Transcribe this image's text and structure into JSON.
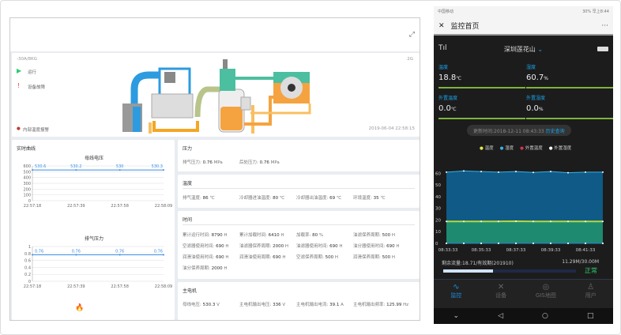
{
  "desktop": {
    "expand_icon": "expand-icon",
    "device": {
      "name": "-30A/8KG",
      "status_running": "运行",
      "status_fault": "设备故障",
      "legend_note": "内部温度报警",
      "signal": "2G",
      "timestamp": "2019-06-04 22:58:15"
    },
    "realtime": {
      "title": "实时曲线",
      "charts": [
        {
          "type": "line",
          "title": "母线电压",
          "categories": [
            "22:57:18",
            "22:57:39",
            "22:57:58",
            "22:58:09"
          ],
          "values": [
            530.6,
            530.2,
            530,
            530.3
          ],
          "yticks": [
            "0",
            "100",
            "200",
            "300",
            "400",
            "500",
            "600"
          ],
          "ylim": [
            0,
            600
          ],
          "color": "#3a8ee6"
        },
        {
          "type": "line",
          "title": "排气压力",
          "categories": [
            "22:57:18",
            "22:57:39",
            "22:57:58",
            "22:58:09"
          ],
          "values": [
            0.76,
            0.76,
            0.76,
            0.76
          ],
          "yticks": [
            "0",
            "0.2",
            "0.4",
            "0.6",
            "0.8",
            "1"
          ],
          "ylim": [
            0,
            1
          ],
          "color": "#3a8ee6"
        }
      ]
    },
    "pressure": {
      "title": "压力",
      "items": [
        {
          "k": "排气压力:",
          "v": "0.76",
          "u": "MPa"
        },
        {
          "k": "后处压力:",
          "v": "0.76",
          "u": "MPa"
        }
      ]
    },
    "temperature": {
      "title": "温度",
      "items": [
        {
          "k": "排气温度:",
          "v": "86",
          "u": "℃"
        },
        {
          "k": "冷却器进油温度:",
          "v": "80",
          "u": "℃"
        },
        {
          "k": "冷却器出油温度:",
          "v": "69",
          "u": "℃"
        },
        {
          "k": "环境温度:",
          "v": "35",
          "u": "℃"
        }
      ]
    },
    "time": {
      "title": "时间",
      "items": [
        {
          "k": "累计运行时间:",
          "v": "8790",
          "u": "H"
        },
        {
          "k": "累计加载时间:",
          "v": "6410",
          "u": "H"
        },
        {
          "k": "加载率:",
          "v": "80",
          "u": "%"
        },
        {
          "k": "油滤保养周期:",
          "v": "500",
          "u": "H"
        },
        {
          "k": "空滤器使用时间:",
          "v": "690",
          "u": "H"
        },
        {
          "k": "油滤器保养周期:",
          "v": "2000",
          "u": "H"
        },
        {
          "k": "油滤器使用时间:",
          "v": "690",
          "u": "H"
        },
        {
          "k": "油分器使用时间:",
          "v": "690",
          "u": "H"
        },
        {
          "k": "润滑油使用时间:",
          "v": "690",
          "u": "H"
        },
        {
          "k": "润滑油使用周期:",
          "v": "690",
          "u": "H"
        },
        {
          "k": "空滤保养周期:",
          "v": "500",
          "u": "H"
        },
        {
          "k": "润滑保养周期:",
          "v": "500",
          "u": "H"
        },
        {
          "k": "油分保养周期:",
          "v": "2000",
          "u": "H"
        }
      ]
    },
    "motor": {
      "title": "主电机",
      "items": [
        {
          "k": "母线电压:",
          "v": "530.3",
          "u": "V"
        },
        {
          "k": "主电机输出电压:",
          "v": "336",
          "u": "V"
        },
        {
          "k": "主电机输出电流:",
          "v": "39.1",
          "u": "A"
        },
        {
          "k": "主电机输出频率:",
          "v": "125.99",
          "u": "Hz"
        }
      ]
    }
  },
  "phone": {
    "status_bar": {
      "carrier": "中国移动",
      "right": "30% 早上8:44"
    },
    "title": "监控首页",
    "close": "✕",
    "more": "···",
    "location": "深圳莲花山",
    "metrics": [
      {
        "k": "温度",
        "v": "18.8",
        "u": "℃"
      },
      {
        "k": "湿度",
        "v": "60.7",
        "u": "%"
      },
      {
        "k": "外置温度",
        "v": "0.0",
        "u": "℃"
      },
      {
        "k": "外置湿度",
        "v": "0.0",
        "u": "%"
      }
    ],
    "update_label": "更新时间:2018-12-11 08:43:33",
    "history_link": "历史查询",
    "legend": [
      {
        "name": "温度",
        "color": "#e8e84a"
      },
      {
        "name": "湿度",
        "color": "#3ab0e8"
      },
      {
        "name": "外置温度",
        "color": "#d8324a"
      },
      {
        "name": "外置湿度",
        "color": "#ffffff"
      }
    ],
    "chart_data": {
      "type": "area",
      "x": [
        "08:33:33",
        "08:34:33",
        "08:35:33",
        "08:36:33",
        "08:37:33",
        "08:38:33",
        "08:39:33",
        "08:40:33",
        "08:41:33",
        "08:42:33"
      ],
      "xticks": [
        "08:33:33",
        "08:35:33",
        "08:37:33",
        "08:39:33",
        "08:41:33"
      ],
      "yticks": [
        "0",
        "10",
        "20",
        "30",
        "40",
        "50",
        "60"
      ],
      "ylim": [
        0,
        65
      ],
      "series": [
        {
          "name": "湿度",
          "values": [
            61,
            62,
            61.5,
            61,
            61.5,
            60.8,
            61.5,
            60.5,
            61,
            61
          ]
        },
        {
          "name": "温度",
          "values": [
            18.8,
            18.8,
            18.8,
            18.8,
            19,
            18.8,
            18.8,
            18.8,
            18.8,
            18.8
          ]
        },
        {
          "name": "外置温度",
          "values": [
            0,
            0,
            0,
            0,
            0,
            0,
            0,
            0,
            0,
            0
          ]
        },
        {
          "name": "外置湿度",
          "values": [
            0,
            0,
            0,
            0,
            0,
            0,
            0,
            0,
            0,
            0
          ]
        }
      ]
    },
    "flow": {
      "label": "剩余流量:18.71/有效期(201910)",
      "usage": "11.29M/30.00M",
      "state": "正常",
      "fraction": 0.376
    },
    "nav": [
      {
        "label": "监控",
        "icon": "chart-icon"
      },
      {
        "label": "设备",
        "icon": "tools-icon"
      },
      {
        "label": "GIS地图",
        "icon": "location-icon"
      },
      {
        "label": "用户",
        "icon": "user-icon"
      }
    ]
  }
}
